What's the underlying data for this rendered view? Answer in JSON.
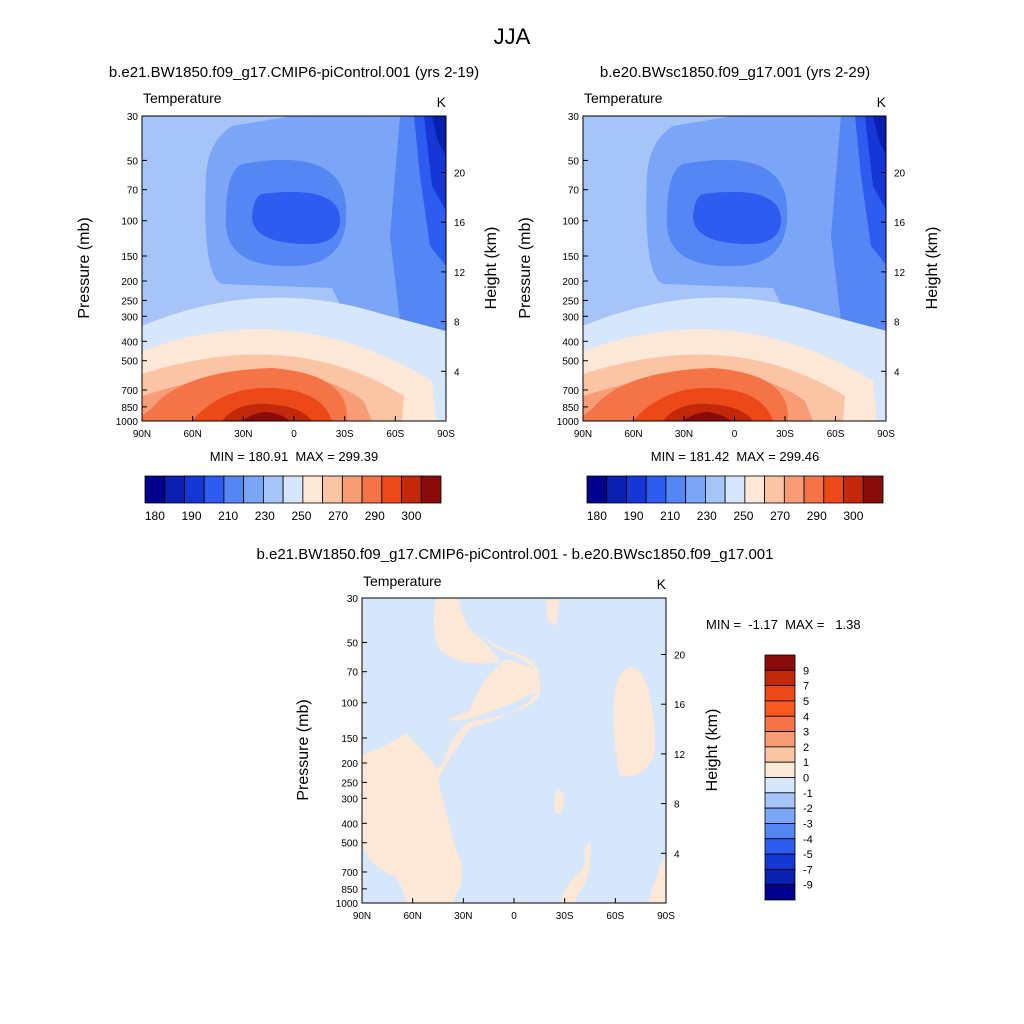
{
  "page_title": "JJA",
  "chart_data": [
    {
      "type": "heatmap",
      "id": "panel1",
      "title": "b.e21.BW1850.f09_g17.CMIP6-piControl.001 (yrs 2-19)",
      "left_label": "Temperature",
      "units": "K",
      "ylabel": "Pressure (mb)",
      "ylabel_right": "Height (km)",
      "x_ticks": [
        "90N",
        "60N",
        "30N",
        "0",
        "30S",
        "60S",
        "90S"
      ],
      "x_values": [
        90,
        60,
        30,
        0,
        -30,
        -60,
        -90
      ],
      "xlim": [
        90,
        -90
      ],
      "y_ticks": [
        30,
        50,
        70,
        100,
        150,
        200,
        250,
        300,
        400,
        500,
        700,
        850,
        1000
      ],
      "ylim_mb": [
        1000,
        30
      ],
      "y_right_ticks": [
        4,
        8,
        12,
        16,
        20
      ],
      "stats": "MIN = 180.91  MAX = 299.39",
      "colorbar_levels": [
        180,
        190,
        210,
        230,
        250,
        270,
        290,
        300
      ],
      "colorbar_colors": [
        "#00008c",
        "#0a1fb0",
        "#1636d6",
        "#2f5cf0",
        "#5486f4",
        "#7ba5f6",
        "#a6c4f8",
        "#d6e7fb",
        "#fde7d6",
        "#fbc5a5",
        "#f89c76",
        "#f57447",
        "#ec4818",
        "#c2290a",
        "#8a0b0b"
      ]
    },
    {
      "type": "heatmap",
      "id": "panel2",
      "title": "b.e20.BWsc1850.f09_g17.001 (yrs 2-29)",
      "left_label": "Temperature",
      "units": "K",
      "ylabel": "Pressure (mb)",
      "ylabel_right": "Height (km)",
      "x_ticks": [
        "90N",
        "60N",
        "30N",
        "0",
        "30S",
        "60S",
        "90S"
      ],
      "x_values": [
        90,
        60,
        30,
        0,
        -30,
        -60,
        -90
      ],
      "xlim": [
        90,
        -90
      ],
      "y_ticks": [
        30,
        50,
        70,
        100,
        150,
        200,
        250,
        300,
        400,
        500,
        700,
        850,
        1000
      ],
      "ylim_mb": [
        1000,
        30
      ],
      "y_right_ticks": [
        4,
        8,
        12,
        16,
        20
      ],
      "stats": "MIN = 181.42  MAX = 299.46",
      "colorbar_levels": [
        180,
        190,
        210,
        230,
        250,
        270,
        290,
        300
      ],
      "colorbar_colors": [
        "#00008c",
        "#0a1fb0",
        "#1636d6",
        "#2f5cf0",
        "#5486f4",
        "#7ba5f6",
        "#a6c4f8",
        "#d6e7fb",
        "#fde7d6",
        "#fbc5a5",
        "#f89c76",
        "#f57447",
        "#ec4818",
        "#c2290a",
        "#8a0b0b"
      ]
    },
    {
      "type": "heatmap",
      "id": "panel3",
      "title": "b.e21.BW1850.f09_g17.CMIP6-piControl.001 - b.e20.BWsc1850.f09_g17.001",
      "left_label": "Temperature",
      "units": "K",
      "ylabel": "Pressure (mb)",
      "ylabel_right": "Height (km)",
      "x_ticks": [
        "90N",
        "60N",
        "30N",
        "0",
        "30S",
        "60S",
        "90S"
      ],
      "x_values": [
        90,
        60,
        30,
        0,
        -30,
        -60,
        -90
      ],
      "xlim": [
        90,
        -90
      ],
      "y_ticks": [
        30,
        50,
        70,
        100,
        150,
        200,
        250,
        300,
        400,
        500,
        700,
        850,
        1000
      ],
      "ylim_mb": [
        1000,
        30
      ],
      "y_right_ticks": [
        4,
        8,
        12,
        16,
        20
      ],
      "stats": "MIN =  -1.17  MAX =   1.38",
      "colorbar_levels": [
        9,
        7,
        5,
        4,
        3,
        2,
        1,
        0,
        -1,
        -2,
        -3,
        -4,
        -5,
        -7,
        -9
      ],
      "colorbar_colors": [
        "#8a0b0b",
        "#c2290a",
        "#ec4818",
        "#f65a1e",
        "#f57447",
        "#f89c76",
        "#fbc5a5",
        "#fde7d6",
        "#d6e7fb",
        "#a6c4f8",
        "#7ba5f6",
        "#5486f4",
        "#2f5cf0",
        "#1636d6",
        "#0a1fb0",
        "#00008c"
      ]
    }
  ]
}
